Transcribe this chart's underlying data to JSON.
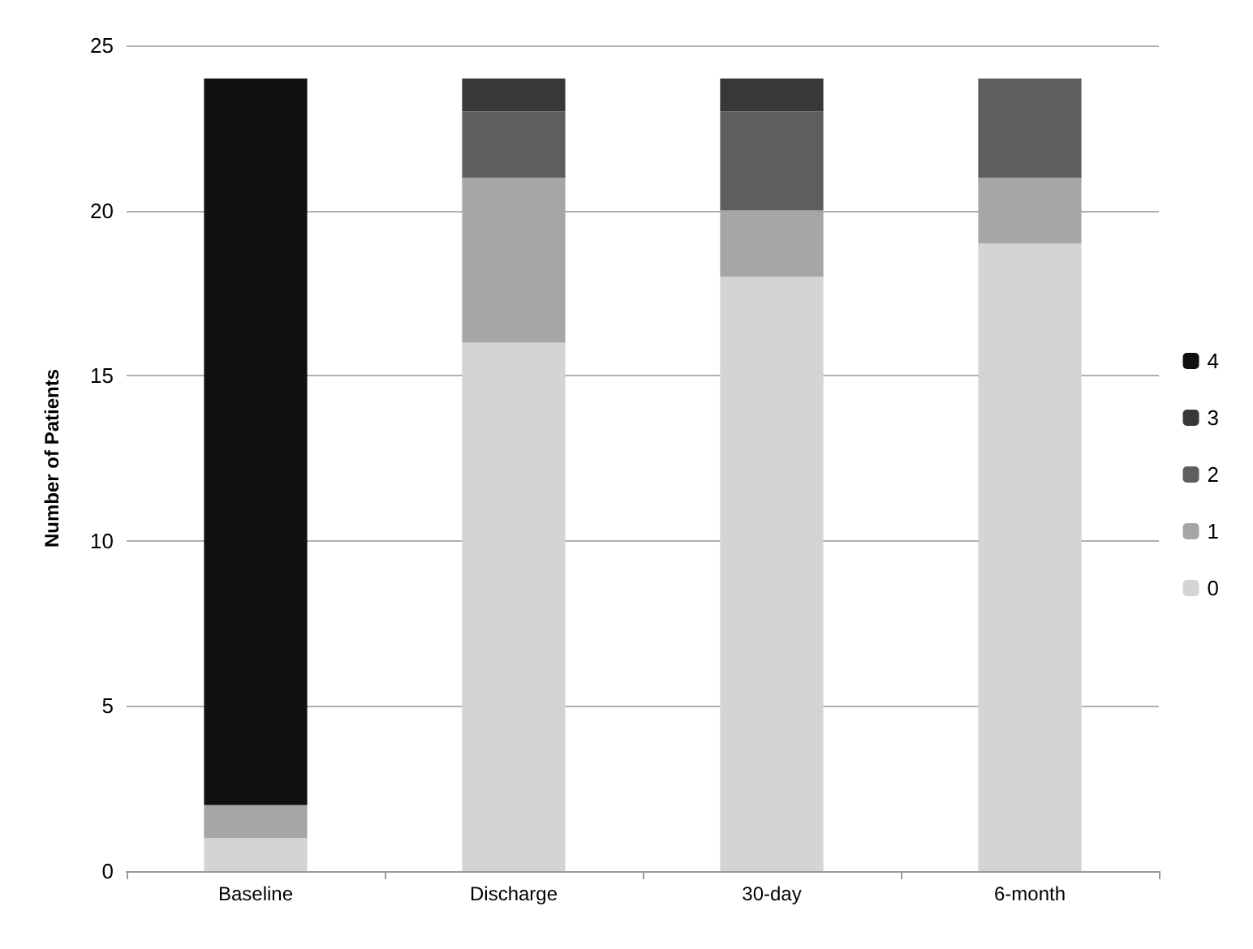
{
  "chart_data": {
    "type": "bar",
    "stacked": true,
    "ylabel": "Number of Patients",
    "categories": [
      "Baseline",
      "Discharge",
      "30-day",
      "6-month"
    ],
    "series": [
      {
        "name": "0",
        "color": "#d4d4d4",
        "values": [
          1,
          16,
          18,
          19
        ]
      },
      {
        "name": "1",
        "color": "#a6a6a6",
        "values": [
          1,
          5,
          2,
          2
        ]
      },
      {
        "name": "2",
        "color": "#5e5e5e",
        "values": [
          0,
          2,
          3,
          3
        ]
      },
      {
        "name": "3",
        "color": "#383838",
        "values": [
          0,
          1,
          1,
          0
        ]
      },
      {
        "name": "4",
        "color": "#111111",
        "values": [
          22,
          0,
          0,
          0
        ]
      }
    ],
    "ylim": [
      0,
      25
    ],
    "yticks": [
      0,
      5,
      10,
      15,
      20,
      25
    ],
    "grid": "y",
    "legend": "right"
  }
}
